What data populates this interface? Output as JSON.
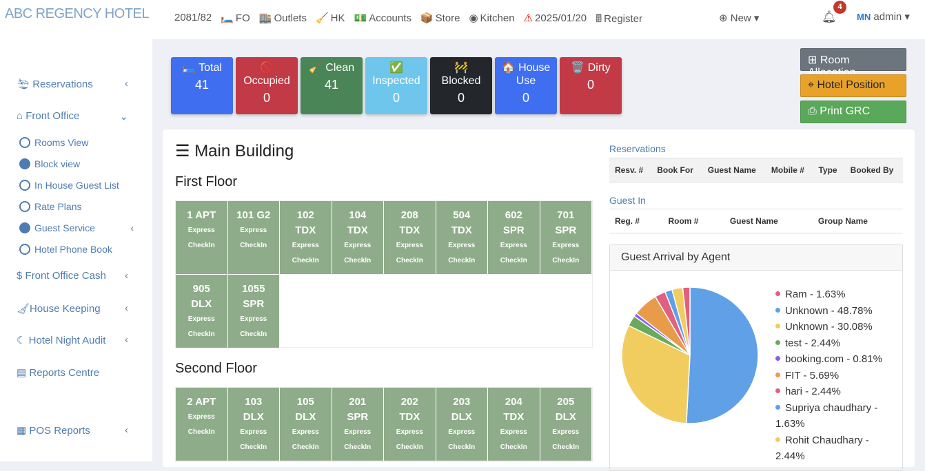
{
  "brand": "ABC REGENCY HOTEL",
  "nav": [
    {
      "icon": "🛏️",
      "label": "2081/82",
      "noicon": true
    },
    {
      "icon": "🛏️",
      "label": "FO"
    },
    {
      "icon": "🏬",
      "label": "Outlets"
    },
    {
      "icon": "🧹",
      "label": "HK"
    },
    {
      "icon": "💵",
      "label": "Accounts"
    },
    {
      "icon": "📦",
      "label": "Store"
    },
    {
      "icon": "◉",
      "label": "Kitchen"
    },
    {
      "icon": "⚠",
      "label": "2025/01/20"
    },
    {
      "icon": "🖩",
      "label": "Register"
    }
  ],
  "new_label": "New",
  "notif_count": "4",
  "user": "admin",
  "sidebar": {
    "reservations": "Reservations",
    "front_office": "Front Office",
    "sub": [
      "Rooms View",
      "Block view",
      "In House Guest List",
      "Rate Plans",
      "Guest Service",
      "Hotel Phone Book"
    ],
    "fo_cash": "Front Office Cash",
    "housekeeping": "House Keeping",
    "night_audit": "Hotel Night Audit",
    "reports": "Reports Centre",
    "pos": "POS Reports"
  },
  "cards": [
    {
      "icon": "🛏️",
      "label": "Total",
      "value": "41",
      "color": "#3f6ff0"
    },
    {
      "icon": "🚫",
      "label": "Occupied",
      "value": "0",
      "color": "#c13a45"
    },
    {
      "icon": "🧹",
      "label": "Clean",
      "value": "41",
      "color": "#4a8558"
    },
    {
      "icon": "✅",
      "label": "Inspected",
      "value": "0",
      "color": "#6ec6ec"
    },
    {
      "icon": "🚧",
      "label": "Blocked",
      "value": "0",
      "color": "#23272b"
    },
    {
      "icon": "🏠",
      "label": "House Use",
      "value": "0",
      "color": "#3f6ff0"
    },
    {
      "icon": "🗑️",
      "label": "Dirty",
      "value": "0",
      "color": "#c13a45"
    }
  ],
  "buttons": {
    "allocation": "Room Allocation",
    "position": "Hotel Position",
    "grc": "Print GRC"
  },
  "building": "Main Building",
  "floors": [
    {
      "name": "First Floor",
      "rooms": [
        [
          "1 APT",
          ""
        ],
        [
          "101 G2",
          ""
        ],
        [
          "102",
          "TDX"
        ],
        [
          "104",
          "TDX"
        ],
        [
          "208",
          "TDX"
        ],
        [
          "504",
          "TDX"
        ],
        [
          "602",
          "SPR"
        ],
        [
          "701",
          "SPR"
        ],
        [
          "905",
          "DLX"
        ],
        [
          "1055",
          "SPR"
        ]
      ]
    },
    {
      "name": "Second Floor",
      "rooms": [
        [
          "2 APT",
          ""
        ],
        [
          "103",
          "DLX"
        ],
        [
          "105",
          "DLX"
        ],
        [
          "201",
          "SPR"
        ],
        [
          "202",
          "TDX"
        ],
        [
          "203",
          "DLX"
        ],
        [
          "204",
          "TDX"
        ],
        [
          "205",
          "DLX"
        ]
      ]
    }
  ],
  "room_status": [
    "Express",
    "CheckIn"
  ],
  "reservations": {
    "title": "Reservations",
    "cols": [
      "Resv. #",
      "Book For",
      "Guest Name",
      "Mobile #",
      "Type",
      "Booked By"
    ]
  },
  "guest_in": {
    "title": "Guest In",
    "cols": [
      "Reg. #",
      "Room #",
      "Guest Name",
      "Group Name"
    ]
  },
  "chart_data": {
    "type": "pie",
    "title": "Guest Arrival by Agent",
    "legend": "right",
    "slices": [
      {
        "name": "Ram",
        "value": 1.63,
        "color": "#e0607e"
      },
      {
        "name": "Unknown",
        "value": 48.78,
        "color": "#5fa0e6"
      },
      {
        "name": "Unknown",
        "value": 30.08,
        "color": "#f1cc5f"
      },
      {
        "name": "test",
        "value": 2.44,
        "color": "#6aaa5a"
      },
      {
        "name": "booking.com",
        "value": 0.81,
        "color": "#8b5cf6"
      },
      {
        "name": "FIT",
        "value": 5.69,
        "color": "#e89c4a"
      },
      {
        "name": "hari",
        "value": 2.44,
        "color": "#e0607e"
      },
      {
        "name": "Supriya chaudhary",
        "value": 1.63,
        "color": "#5fa0e6"
      },
      {
        "name": "Rohit Chaudhary",
        "value": 2.44,
        "color": "#f1cc5f"
      }
    ]
  }
}
